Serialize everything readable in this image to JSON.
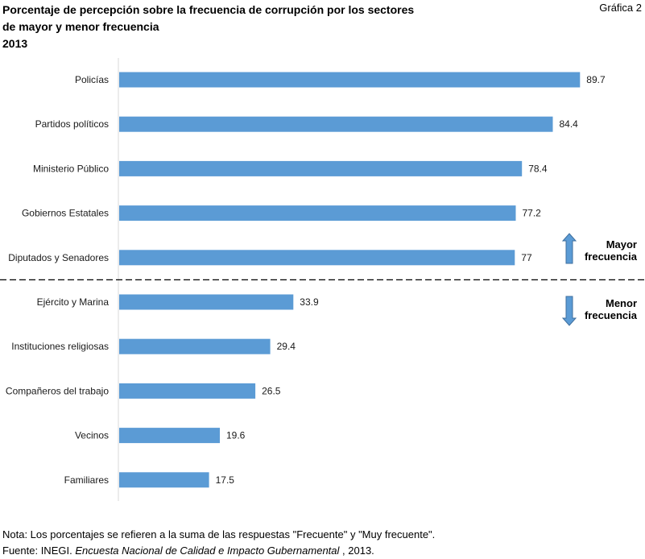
{
  "header": {
    "title_line1": "Porcentaje de percepción sobre la frecuencia de corrupción por los sectores",
    "title_line2": "de mayor y menor frecuencia",
    "year": "2013",
    "figure_tag": "Gráfica 2"
  },
  "chart_data": {
    "type": "bar",
    "orientation": "horizontal",
    "categories": [
      "Policías",
      "Partidos políticos",
      "Ministerio Público",
      "Gobiernos Estatales",
      "Diputados y Senadores",
      "Ejército y Marina",
      "Instituciones religiosas",
      "Compañeros del trabajo",
      "Vecinos",
      "Familiares"
    ],
    "values": [
      89.7,
      84.4,
      78.4,
      77.2,
      77,
      33.9,
      29.4,
      26.5,
      19.6,
      17.5
    ],
    "value_labels": [
      "89.7",
      "84.4",
      "78.4",
      "77.2",
      "77",
      "33.9",
      "29.4",
      "26.5",
      "19.6",
      "17.5"
    ],
    "xlim": [
      0,
      100
    ],
    "bar_color": "#5b9bd5",
    "grid": false,
    "group_split_after_index": 4,
    "annotations": {
      "upper": {
        "line1": "Mayor",
        "line2": "frecuencia",
        "arrow": "up-arrow-icon"
      },
      "lower": {
        "line1": "Menor",
        "line2": "frecuencia",
        "arrow": "down-arrow-icon"
      }
    }
  },
  "footer": {
    "note": "Nota: Los porcentajes se refieren a la suma de las respuestas \"Frecuente\" y \"Muy frecuente\".",
    "source_prefix": "Fuente: INEGI. ",
    "source_title": "Encuesta Nacional de Calidad e Impacto Gubernamental",
    "source_suffix": " , 2013."
  }
}
